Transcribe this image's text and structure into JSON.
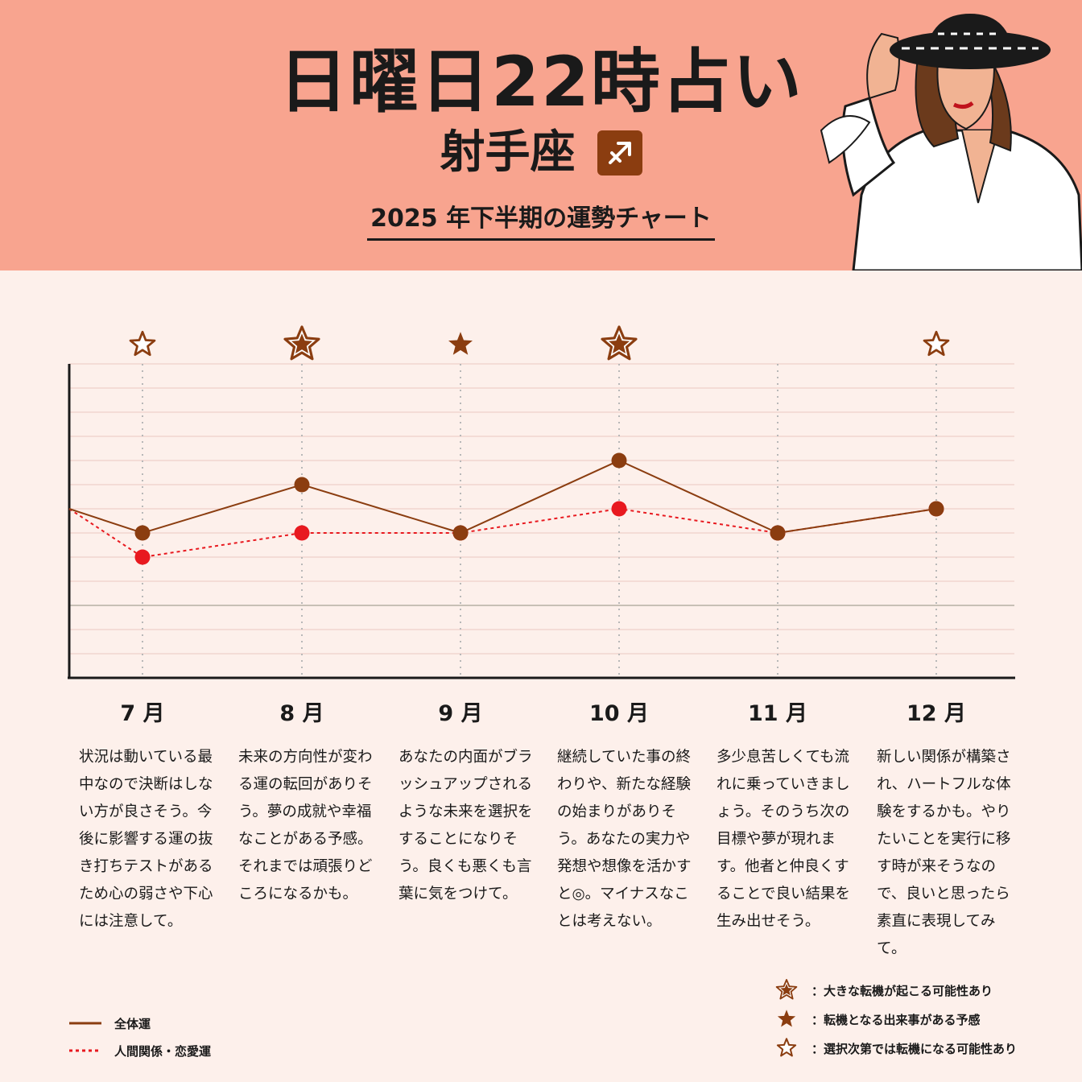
{
  "header": {
    "title": "日曜日22時占い",
    "sign": "射手座",
    "sign_symbol": "♐",
    "subtitle": "2025 年下半期の運勢チャート"
  },
  "colors": {
    "header_bg": "#f8a48f",
    "page_bg": "#fdf0eb",
    "overall_line": "#8b3d10",
    "relation_line": "#e8191f",
    "star": "#8b3d10"
  },
  "chart_data": {
    "type": "line",
    "categories": [
      "7 月",
      "8 月",
      "9 月",
      "10 月",
      "11 月",
      "12 月"
    ],
    "ylim": [
      -3,
      10
    ],
    "baseline": 0,
    "grid": true,
    "series": [
      {
        "name": "全体運",
        "style": "solid",
        "start": 4,
        "values": [
          3,
          5,
          3,
          6,
          3,
          4
        ]
      },
      {
        "name": "人間関係・恋愛運",
        "style": "dotted",
        "start": 4,
        "values": [
          2,
          3,
          3,
          4,
          3,
          4
        ]
      }
    ],
    "markers": [
      "outline-star",
      "big-star",
      "filled-star",
      "big-star",
      "none",
      "outline-star"
    ],
    "legend_placement": "bottom"
  },
  "months": [
    {
      "label": "7 月",
      "text": "状況は動いている最中なので決断はしない方が良さそう。今後に影響する運の抜き打ちテストがあるため心の弱さや下心には注意して。"
    },
    {
      "label": "8 月",
      "text": "未来の方向性が変わる運の転回がありそう。夢の成就や幸福なことがある予感。それまでは頑張りどころになるかも。"
    },
    {
      "label": "9 月",
      "text": "あなたの内面がブラッシュアップされるような未来を選択をすることになりそう。良くも悪くも言葉に気をつけて。"
    },
    {
      "label": "10 月",
      "text": "継続していた事の終わりや、新たな経験の始まりがありそう。あなたの実力や発想や想像を活かすと◎。マイナスなことは考えない。"
    },
    {
      "label": "11 月",
      "text": "多少息苦しくても流れに乗っていきましょう。そのうち次の目標や夢が現れます。他者と仲良くすることで良い結果を生み出せそう。"
    },
    {
      "label": "12 月",
      "text": "新しい関係が構築され、ハートフルな体験をするかも。やりたいことを実行に移す時が来そうなので、良いと思ったら素直に表現してみて。"
    }
  ],
  "legend": {
    "overall": "全体運",
    "relation": "人間関係・恋愛運",
    "big_star": "：大きな転機が起こる可能性あり",
    "filled_star": "：転機となる出来事がある予感",
    "outline_star": "：選択次第では転機になる可能性あり"
  }
}
